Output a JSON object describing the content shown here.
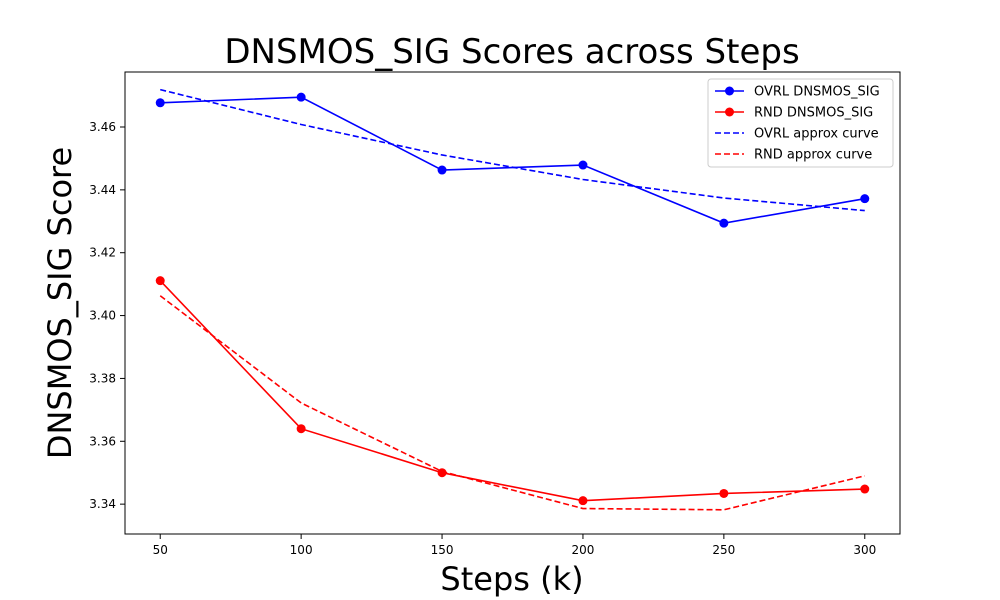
{
  "chart_data": {
    "type": "line",
    "title": "DNSMOS_SIG Scores across Steps",
    "xlabel": "Steps (k)",
    "ylabel": "DNSMOS_SIG Score",
    "x": [
      50,
      100,
      150,
      200,
      250,
      300
    ],
    "xlim": [
      37.5,
      312.5
    ],
    "ylim": [
      3.3305,
      3.4775
    ],
    "xticks": [
      50,
      100,
      150,
      200,
      250,
      300
    ],
    "yticks": [
      3.34,
      3.36,
      3.38,
      3.4,
      3.42,
      3.44,
      3.46
    ],
    "ytick_labels": [
      "3.34",
      "3.36",
      "3.38",
      "3.40",
      "3.42",
      "3.44",
      "3.46"
    ],
    "grid": false,
    "legend_position": "top-right",
    "series": [
      {
        "name": "OVRL DNSMOS_SIG",
        "style": "solid",
        "marker": "circle",
        "color": "#0000ff",
        "values": [
          3.4677,
          3.4695,
          3.4463,
          3.4479,
          3.4294,
          3.4372
        ]
      },
      {
        "name": "RND DNSMOS_SIG",
        "style": "solid",
        "marker": "circle",
        "color": "#ff0000",
        "values": [
          3.4111,
          3.364,
          3.35,
          3.3411,
          3.3434,
          3.3448
        ]
      },
      {
        "name": "OVRL approx curve",
        "style": "dashed",
        "marker": "none",
        "color": "#0000ff",
        "values": [
          3.4719,
          3.4608,
          3.4511,
          3.4433,
          3.4374,
          3.4334
        ]
      },
      {
        "name": "RND approx curve",
        "style": "dashed",
        "marker": "none",
        "color": "#ff0000",
        "values": [
          3.4063,
          3.3722,
          3.3504,
          3.3386,
          3.3382,
          3.349
        ]
      }
    ]
  }
}
